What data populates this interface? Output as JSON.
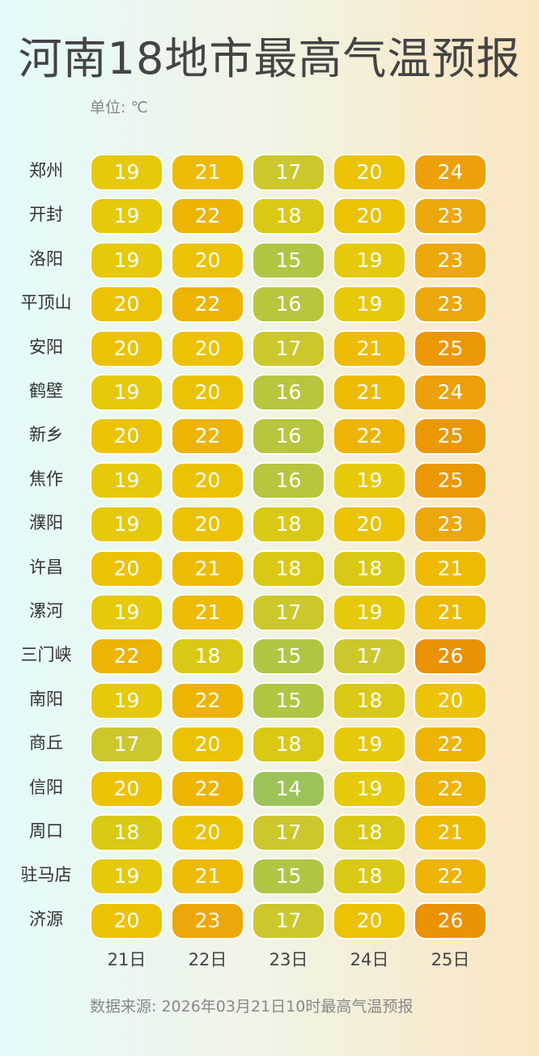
{
  "header": {
    "title": "河南18地市最高气温预报",
    "unit_label": "单位: ℃"
  },
  "footer": {
    "source": "数据来源: 2026年03月21日10时最高气温预报"
  },
  "chart_data": {
    "type": "heatmap",
    "title": "河南18地市最高气温预报",
    "unit": "℃",
    "days": [
      "21日",
      "22日",
      "23日",
      "24日",
      "25日"
    ],
    "cities": [
      "郑州",
      "开封",
      "洛阳",
      "平顶山",
      "安阳",
      "鹤壁",
      "新乡",
      "焦作",
      "濮阳",
      "许昌",
      "漯河",
      "三门峡",
      "南阳",
      "商丘",
      "信阳",
      "周口",
      "驻马店",
      "济源"
    ],
    "values": [
      [
        19,
        21,
        17,
        20,
        24
      ],
      [
        19,
        22,
        18,
        20,
        23
      ],
      [
        19,
        20,
        15,
        19,
        23
      ],
      [
        20,
        22,
        16,
        19,
        23
      ],
      [
        20,
        20,
        17,
        21,
        25
      ],
      [
        19,
        20,
        16,
        21,
        24
      ],
      [
        20,
        22,
        16,
        22,
        25
      ],
      [
        19,
        20,
        16,
        19,
        25
      ],
      [
        19,
        20,
        18,
        20,
        23
      ],
      [
        20,
        21,
        18,
        18,
        21
      ],
      [
        19,
        21,
        17,
        19,
        21
      ],
      [
        22,
        18,
        15,
        17,
        26
      ],
      [
        19,
        22,
        15,
        18,
        20
      ],
      [
        17,
        20,
        18,
        19,
        22
      ],
      [
        20,
        22,
        14,
        19,
        22
      ],
      [
        18,
        20,
        17,
        18,
        21
      ],
      [
        19,
        21,
        15,
        18,
        22
      ],
      [
        20,
        23,
        17,
        20,
        26
      ]
    ],
    "color_scale": {
      "14": "#9cc35a",
      "15": "#b1c545",
      "16": "#b8c53f",
      "17": "#cdc72e",
      "18": "#dac914",
      "19": "#e6c90a",
      "20": "#ecc205",
      "21": "#edbb04",
      "22": "#edb405",
      "23": "#eca70a",
      "24": "#eca00a",
      "25": "#eb9804",
      "26": "#eb9104"
    }
  }
}
